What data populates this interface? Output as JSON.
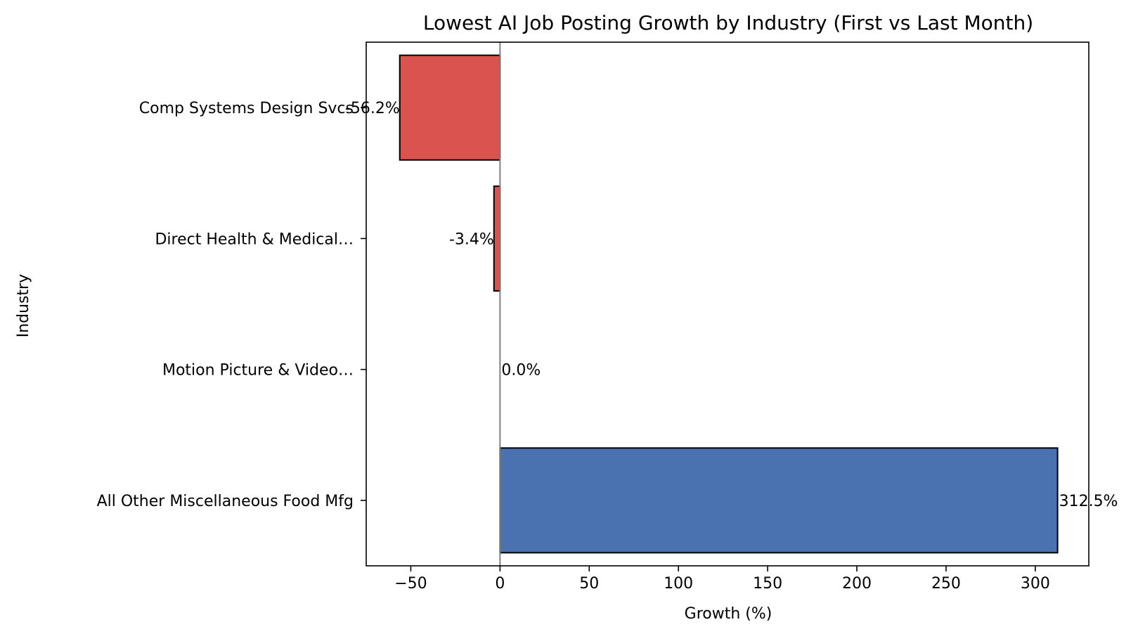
{
  "chart_data": {
    "type": "bar",
    "orientation": "horizontal",
    "title": "Lowest AI Job Posting Growth by Industry (First vs Last Month)",
    "xlabel": "Growth (%)",
    "ylabel": "Industry",
    "xlim": [
      -75,
      330
    ],
    "x_ticks": [
      -50,
      0,
      50,
      100,
      150,
      200,
      250,
      300
    ],
    "x_tick_labels": [
      "−50",
      "0",
      "50",
      "100",
      "150",
      "200",
      "250",
      "300"
    ],
    "categories": [
      "Comp Systems Design Svcs",
      "Direct Health & Medical…",
      "Motion Picture & Video…",
      "All Other Miscellaneous Food Mfg"
    ],
    "values": [
      -56.2,
      -3.4,
      0.0,
      312.5
    ],
    "data_labels": [
      "-56.2%",
      "-3.4%",
      "0.0%",
      "312.5%"
    ],
    "colors": {
      "negative": "#d9534f",
      "positive": "#4a72b0",
      "zero_line": "#808080",
      "edge": "#000000"
    },
    "grid": false,
    "legend": "none"
  }
}
